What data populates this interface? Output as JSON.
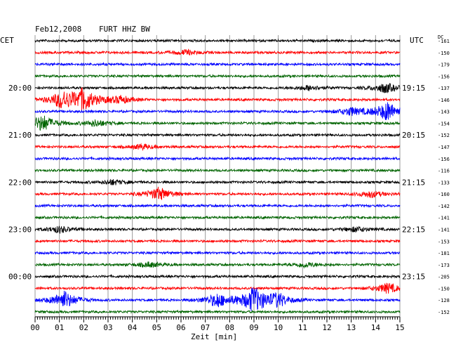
{
  "chart_data": {
    "type": "line",
    "title": "Feb12,2008",
    "station": "FURT HHZ BW",
    "left_label": "CET",
    "right_label": "UTC",
    "dc_label": "DC",
    "xlabel": "Zeit [min]",
    "x_ticks": [
      "00",
      "01",
      "02",
      "03",
      "04",
      "05",
      "06",
      "07",
      "08",
      "09",
      "10",
      "11",
      "12",
      "13",
      "14",
      "15"
    ],
    "xlim": [
      0,
      15
    ],
    "trace_colors": [
      "#000000",
      "#ff0000",
      "#0000ff",
      "#006400"
    ],
    "time_labels_left": [
      "20:00",
      "21:00",
      "22:00",
      "23:00",
      "00:00"
    ],
    "time_labels_right": [
      "19:15",
      "20:15",
      "21:15",
      "22:15",
      "23:15"
    ],
    "dc_offsets": [
      -161,
      -150,
      -179,
      -156,
      -137,
      -146,
      -143,
      -154,
      -152,
      -147,
      -156,
      -116,
      -133,
      -160,
      -142,
      -141,
      -141,
      -153,
      -181,
      -173,
      -205,
      -150,
      -128,
      -152
    ],
    "traces_count": 24,
    "events": [
      {
        "trace": 1,
        "minute": 6.2,
        "amplitude": 0.3
      },
      {
        "trace": 4,
        "minute": 11.3,
        "amplitude": 0.3
      },
      {
        "trace": 4,
        "minute": 14.4,
        "amplitude": 0.6
      },
      {
        "trace": 5,
        "minute": 1.1,
        "amplitude": 1.0
      },
      {
        "trace": 5,
        "minute": 2.0,
        "amplitude": 1.4
      },
      {
        "trace": 5,
        "minute": 3.5,
        "amplitude": 0.5
      },
      {
        "trace": 6,
        "minute": 13.0,
        "amplitude": 0.5
      },
      {
        "trace": 6,
        "minute": 14.5,
        "amplitude": 1.2
      },
      {
        "trace": 7,
        "minute": 0.3,
        "amplitude": 1.0
      },
      {
        "trace": 7,
        "minute": 2.5,
        "amplitude": 0.4
      },
      {
        "trace": 9,
        "minute": 4.4,
        "amplitude": 0.3
      },
      {
        "trace": 12,
        "minute": 3.2,
        "amplitude": 0.3
      },
      {
        "trace": 13,
        "minute": 5.1,
        "amplitude": 0.8
      },
      {
        "trace": 13,
        "minute": 13.8,
        "amplitude": 0.4
      },
      {
        "trace": 16,
        "minute": 1.0,
        "amplitude": 0.4
      },
      {
        "trace": 16,
        "minute": 13.2,
        "amplitude": 0.3
      },
      {
        "trace": 19,
        "minute": 4.7,
        "amplitude": 0.3
      },
      {
        "trace": 19,
        "minute": 11.1,
        "amplitude": 0.3
      },
      {
        "trace": 21,
        "minute": 14.5,
        "amplitude": 0.6
      },
      {
        "trace": 22,
        "minute": 1.2,
        "amplitude": 1.1
      },
      {
        "trace": 22,
        "minute": 7.5,
        "amplitude": 0.9
      },
      {
        "trace": 22,
        "minute": 9.0,
        "amplitude": 1.6
      },
      {
        "trace": 22,
        "minute": 10.0,
        "amplitude": 0.8
      }
    ]
  }
}
